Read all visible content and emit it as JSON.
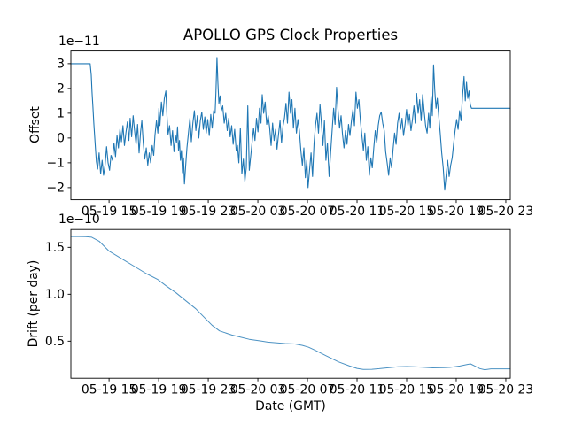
{
  "figure": {
    "background": "#ffffff",
    "text_color": "#000000",
    "frame_color": "#000000"
  },
  "chart_data": [
    {
      "type": "line",
      "title": "APOLLO GPS Clock Properties",
      "ylabel": "Offset",
      "xlabel": "",
      "y_scale_offset_text": "1e−11",
      "line_color": "#1f77b4",
      "x_unit": "hours since 05-19 00:00 GMT",
      "xlim": [
        11.92,
        47.36
      ],
      "ylim": [
        -2.49,
        3.51
      ],
      "x_ticks": [
        15,
        19,
        23,
        27,
        31,
        35,
        39,
        43,
        47
      ],
      "x_tick_labels": [
        "05-19 15",
        "05-19 19",
        "05-19 23",
        "05-20 03",
        "05-20 07",
        "05-20 11",
        "05-20 15",
        "05-20 19",
        "05-20 23"
      ],
      "y_ticks": [
        3,
        2,
        1,
        0,
        -1,
        -2
      ],
      "y_tick_labels": [
        "3",
        "2",
        "1",
        "0",
        "−1",
        "−2"
      ],
      "grid": false,
      "legend": null,
      "points": [
        [
          11.92,
          3.0
        ],
        [
          12.6,
          3.0
        ],
        [
          13.2,
          3.0
        ],
        [
          13.48,
          3.0
        ],
        [
          13.56,
          2.55
        ],
        [
          13.63,
          1.85
        ],
        [
          13.7,
          1.25
        ],
        [
          13.77,
          0.6
        ],
        [
          13.84,
          0.05
        ],
        [
          13.91,
          -0.5
        ],
        [
          13.98,
          -0.95
        ],
        [
          14.08,
          -1.25
        ],
        [
          14.2,
          -0.6
        ],
        [
          14.32,
          -1.45
        ],
        [
          14.44,
          -0.9
        ],
        [
          14.56,
          -1.5
        ],
        [
          14.68,
          -1.1
        ],
        [
          14.8,
          -0.35
        ],
        [
          14.92,
          -1.0
        ],
        [
          15.04,
          -1.3
        ],
        [
          15.16,
          -0.7
        ],
        [
          15.28,
          -0.9
        ],
        [
          15.4,
          -0.2
        ],
        [
          15.52,
          -0.75
        ],
        [
          15.64,
          0.1
        ],
        [
          15.76,
          -0.4
        ],
        [
          15.88,
          0.35
        ],
        [
          16.0,
          -0.15
        ],
        [
          16.12,
          0.5
        ],
        [
          16.24,
          -0.3
        ],
        [
          16.36,
          0.2
        ],
        [
          16.48,
          0.65
        ],
        [
          16.6,
          -0.1
        ],
        [
          16.7,
          0.8
        ],
        [
          16.82,
          0.05
        ],
        [
          16.94,
          0.9
        ],
        [
          17.06,
          0.3
        ],
        [
          17.18,
          -0.25
        ],
        [
          17.3,
          0.55
        ],
        [
          17.42,
          -0.6
        ],
        [
          17.54,
          0.25
        ],
        [
          17.64,
          0.7
        ],
        [
          17.76,
          -0.2
        ],
        [
          17.88,
          -0.85
        ],
        [
          18.0,
          -0.4
        ],
        [
          18.12,
          -1.1
        ],
        [
          18.24,
          -0.6
        ],
        [
          18.36,
          -1.0
        ],
        [
          18.48,
          -0.3
        ],
        [
          18.6,
          -0.7
        ],
        [
          18.7,
          0.1
        ],
        [
          18.82,
          0.7
        ],
        [
          18.94,
          0.2
        ],
        [
          19.02,
          1.2
        ],
        [
          19.1,
          0.5
        ],
        [
          19.22,
          1.45
        ],
        [
          19.34,
          0.9
        ],
        [
          19.46,
          1.6
        ],
        [
          19.58,
          1.9
        ],
        [
          19.68,
          0.8
        ],
        [
          19.76,
          0.15
        ],
        [
          19.88,
          0.5
        ],
        [
          20.0,
          -0.3
        ],
        [
          20.12,
          0.3
        ],
        [
          20.24,
          -0.55
        ],
        [
          20.36,
          0.1
        ],
        [
          20.44,
          -0.2
        ],
        [
          20.52,
          0.45
        ],
        [
          20.6,
          -0.5
        ],
        [
          20.68,
          -0.1
        ],
        [
          20.76,
          -0.9
        ],
        [
          20.84,
          -0.5
        ],
        [
          20.92,
          -1.4
        ],
        [
          21.0,
          -0.8
        ],
        [
          21.08,
          -1.85
        ],
        [
          21.18,
          -1.1
        ],
        [
          21.28,
          -0.4
        ],
        [
          21.4,
          0.2
        ],
        [
          21.52,
          0.8
        ],
        [
          21.64,
          -0.15
        ],
        [
          21.76,
          0.6
        ],
        [
          21.88,
          1.1
        ],
        [
          22.0,
          0.3
        ],
        [
          22.12,
          0.9
        ],
        [
          22.24,
          0.0
        ],
        [
          22.36,
          0.7
        ],
        [
          22.48,
          1.05
        ],
        [
          22.6,
          0.35
        ],
        [
          22.72,
          0.85
        ],
        [
          22.84,
          0.2
        ],
        [
          22.96,
          0.75
        ],
        [
          23.08,
          0.1
        ],
        [
          23.2,
          0.95
        ],
        [
          23.32,
          0.4
        ],
        [
          23.44,
          1.1
        ],
        [
          23.55,
          1.0
        ],
        [
          23.62,
          1.8
        ],
        [
          23.7,
          3.25
        ],
        [
          23.78,
          2.2
        ],
        [
          23.86,
          1.4
        ],
        [
          23.95,
          1.7
        ],
        [
          24.05,
          1.1
        ],
        [
          24.17,
          1.3
        ],
        [
          24.29,
          0.6
        ],
        [
          24.41,
          1.0
        ],
        [
          24.53,
          0.3
        ],
        [
          24.65,
          0.8
        ],
        [
          24.77,
          0.05
        ],
        [
          24.89,
          0.5
        ],
        [
          25.01,
          -0.25
        ],
        [
          25.13,
          0.35
        ],
        [
          25.25,
          -0.5
        ],
        [
          25.35,
          -0.3
        ],
        [
          25.47,
          -1.0
        ],
        [
          25.59,
          0.4
        ],
        [
          25.71,
          -1.45
        ],
        [
          25.83,
          -0.85
        ],
        [
          25.95,
          -1.75
        ],
        [
          26.07,
          -1.2
        ],
        [
          26.19,
          1.3
        ],
        [
          26.31,
          -1.3
        ],
        [
          26.43,
          -0.7
        ],
        [
          26.53,
          -0.2
        ],
        [
          26.65,
          0.4
        ],
        [
          26.77,
          -0.1
        ],
        [
          26.89,
          0.8
        ],
        [
          27.01,
          0.25
        ],
        [
          27.13,
          1.2
        ],
        [
          27.25,
          0.6
        ],
        [
          27.35,
          1.75
        ],
        [
          27.47,
          1.0
        ],
        [
          27.59,
          1.45
        ],
        [
          27.71,
          0.55
        ],
        [
          27.83,
          0.9
        ],
        [
          27.95,
          0.45
        ],
        [
          28.07,
          -0.3
        ],
        [
          28.19,
          0.6
        ],
        [
          28.31,
          -0.1
        ],
        [
          28.43,
          0.35
        ],
        [
          28.55,
          -0.45
        ],
        [
          28.67,
          0.15
        ],
        [
          28.79,
          0.7
        ],
        [
          28.91,
          -0.2
        ],
        [
          29.03,
          0.5
        ],
        [
          29.15,
          0.8
        ],
        [
          29.27,
          1.4
        ],
        [
          29.39,
          0.6
        ],
        [
          29.51,
          1.85
        ],
        [
          29.63,
          1.0
        ],
        [
          29.75,
          1.55
        ],
        [
          29.87,
          0.4
        ],
        [
          29.99,
          1.2
        ],
        [
          30.11,
          0.2
        ],
        [
          30.23,
          0.75
        ],
        [
          30.35,
          0.3
        ],
        [
          30.47,
          -0.5
        ],
        [
          30.59,
          -1.1
        ],
        [
          30.71,
          -0.4
        ],
        [
          30.83,
          -1.6
        ],
        [
          30.95,
          -0.9
        ],
        [
          31.05,
          -2.0
        ],
        [
          31.17,
          -1.3
        ],
        [
          31.29,
          -0.6
        ],
        [
          31.41,
          -1.55
        ],
        [
          31.53,
          -0.2
        ],
        [
          31.65,
          0.5
        ],
        [
          31.77,
          1.0
        ],
        [
          31.89,
          0.2
        ],
        [
          32.01,
          1.35
        ],
        [
          32.13,
          0.6
        ],
        [
          32.25,
          -0.3
        ],
        [
          32.37,
          0.7
        ],
        [
          32.49,
          -0.9
        ],
        [
          32.61,
          -0.2
        ],
        [
          32.75,
          -1.55
        ],
        [
          32.87,
          -0.6
        ],
        [
          32.99,
          0.3
        ],
        [
          33.11,
          1.2
        ],
        [
          33.23,
          0.55
        ],
        [
          33.35,
          2.05
        ],
        [
          33.47,
          1.1
        ],
        [
          33.59,
          0.4
        ],
        [
          33.71,
          0.9
        ],
        [
          33.83,
          0.15
        ],
        [
          33.95,
          -0.4
        ],
        [
          34.07,
          0.3
        ],
        [
          34.19,
          -0.25
        ],
        [
          34.31,
          0.55
        ],
        [
          34.43,
          0.1
        ],
        [
          34.55,
          0.7
        ],
        [
          34.67,
          1.15
        ],
        [
          34.79,
          0.5
        ],
        [
          34.91,
          1.85
        ],
        [
          35.03,
          1.2
        ],
        [
          35.15,
          1.55
        ],
        [
          35.27,
          0.7
        ],
        [
          35.39,
          0.1
        ],
        [
          35.51,
          -0.5
        ],
        [
          35.63,
          0.2
        ],
        [
          35.75,
          -0.9
        ],
        [
          35.87,
          -0.35
        ],
        [
          35.99,
          -1.5
        ],
        [
          36.11,
          -0.8
        ],
        [
          36.23,
          -1.2
        ],
        [
          36.35,
          -0.4
        ],
        [
          36.47,
          0.3
        ],
        [
          36.59,
          -0.2
        ],
        [
          36.71,
          0.5
        ],
        [
          36.83,
          0.9
        ],
        [
          36.95,
          1.05
        ],
        [
          37.07,
          0.6
        ],
        [
          37.19,
          0.3
        ],
        [
          37.31,
          -0.55
        ],
        [
          37.43,
          -1.0
        ],
        [
          37.55,
          -1.5
        ],
        [
          37.67,
          -0.8
        ],
        [
          37.79,
          -1.2
        ],
        [
          37.91,
          -0.45
        ],
        [
          38.03,
          0.2
        ],
        [
          38.15,
          -0.25
        ],
        [
          38.27,
          0.6
        ],
        [
          38.39,
          1.0
        ],
        [
          38.51,
          0.35
        ],
        [
          38.63,
          0.8
        ],
        [
          38.75,
          0.1
        ],
        [
          38.87,
          0.55
        ],
        [
          38.99,
          1.15
        ],
        [
          39.11,
          0.5
        ],
        [
          39.23,
          0.95
        ],
        [
          39.35,
          0.3
        ],
        [
          39.47,
          0.75
        ],
        [
          39.59,
          1.3
        ],
        [
          39.69,
          0.6
        ],
        [
          39.81,
          1.8
        ],
        [
          39.93,
          1.0
        ],
        [
          40.05,
          1.55
        ],
        [
          40.17,
          0.7
        ],
        [
          40.29,
          1.75
        ],
        [
          40.41,
          1.1
        ],
        [
          40.53,
          0.5
        ],
        [
          40.65,
          0.2
        ],
        [
          40.77,
          1.0
        ],
        [
          40.87,
          0.4
        ],
        [
          40.97,
          1.7
        ],
        [
          41.07,
          0.9
        ],
        [
          41.17,
          2.95
        ],
        [
          41.27,
          1.9
        ],
        [
          41.37,
          1.2
        ],
        [
          41.47,
          1.6
        ],
        [
          41.59,
          0.9
        ],
        [
          41.71,
          0.2
        ],
        [
          41.83,
          -0.6
        ],
        [
          41.95,
          -1.2
        ],
        [
          42.07,
          -2.1
        ],
        [
          42.19,
          -1.5
        ],
        [
          42.31,
          -0.9
        ],
        [
          42.43,
          -1.55
        ],
        [
          42.55,
          -1.1
        ],
        [
          42.67,
          -0.8
        ],
        [
          42.79,
          -0.25
        ],
        [
          42.91,
          0.3
        ],
        [
          43.03,
          0.75
        ],
        [
          43.15,
          0.35
        ],
        [
          43.27,
          1.1
        ],
        [
          43.39,
          0.7
        ],
        [
          43.51,
          1.7
        ],
        [
          43.63,
          2.48
        ],
        [
          43.73,
          1.5
        ],
        [
          43.83,
          2.25
        ],
        [
          43.93,
          1.6
        ],
        [
          44.03,
          1.9
        ],
        [
          44.13,
          1.35
        ],
        [
          44.23,
          1.2
        ],
        [
          45.0,
          1.2
        ],
        [
          46.2,
          1.2
        ],
        [
          47.36,
          1.2
        ]
      ]
    },
    {
      "type": "line",
      "title": "",
      "ylabel": "Drift (per day)",
      "xlabel": "Date (GMT)",
      "y_scale_offset_text": "1e−10",
      "line_color": "#1f77b4",
      "x_unit": "hours since 05-19 00:00 GMT",
      "xlim": [
        11.92,
        47.36
      ],
      "ylim": [
        0.105,
        1.69
      ],
      "x_ticks": [
        15,
        19,
        23,
        27,
        31,
        35,
        39,
        43,
        47
      ],
      "x_tick_labels": [
        "05-19 15",
        "05-19 19",
        "05-19 23",
        "05-20 03",
        "05-20 07",
        "05-20 11",
        "05-20 15",
        "05-20 19",
        "05-20 23"
      ],
      "y_ticks": [
        0.5,
        1.0,
        1.5
      ],
      "y_tick_labels": [
        "0.5",
        "1.0",
        "1.5"
      ],
      "grid": false,
      "legend": null,
      "points": [
        [
          11.92,
          1.615
        ],
        [
          12.6,
          1.615
        ],
        [
          13.1,
          1.614
        ],
        [
          13.6,
          1.608
        ],
        [
          14.2,
          1.565
        ],
        [
          15.0,
          1.46
        ],
        [
          16.0,
          1.38
        ],
        [
          17.0,
          1.3
        ],
        [
          18.0,
          1.22
        ],
        [
          18.9,
          1.16
        ],
        [
          19.6,
          1.09
        ],
        [
          20.4,
          1.015
        ],
        [
          21.2,
          0.93
        ],
        [
          22.0,
          0.845
        ],
        [
          22.7,
          0.75
        ],
        [
          23.3,
          0.67
        ],
        [
          23.9,
          0.61
        ],
        [
          24.9,
          0.565
        ],
        [
          26.3,
          0.52
        ],
        [
          27.3,
          0.5
        ],
        [
          27.8,
          0.49
        ],
        [
          29.2,
          0.475
        ],
        [
          30.0,
          0.47
        ],
        [
          30.6,
          0.455
        ],
        [
          31.1,
          0.435
        ],
        [
          31.6,
          0.405
        ],
        [
          32.5,
          0.345
        ],
        [
          33.5,
          0.28
        ],
        [
          34.4,
          0.235
        ],
        [
          35.0,
          0.21
        ],
        [
          35.5,
          0.198
        ],
        [
          36.2,
          0.2
        ],
        [
          36.8,
          0.207
        ],
        [
          37.6,
          0.218
        ],
        [
          38.3,
          0.227
        ],
        [
          39.0,
          0.23
        ],
        [
          39.6,
          0.228
        ],
        [
          40.3,
          0.222
        ],
        [
          41.1,
          0.215
        ],
        [
          42.0,
          0.218
        ],
        [
          42.6,
          0.222
        ],
        [
          43.3,
          0.235
        ],
        [
          43.9,
          0.252
        ],
        [
          44.15,
          0.258
        ],
        [
          44.5,
          0.235
        ],
        [
          44.9,
          0.208
        ],
        [
          45.3,
          0.196
        ],
        [
          45.8,
          0.205
        ],
        [
          46.5,
          0.205
        ],
        [
          47.36,
          0.205
        ]
      ]
    }
  ]
}
